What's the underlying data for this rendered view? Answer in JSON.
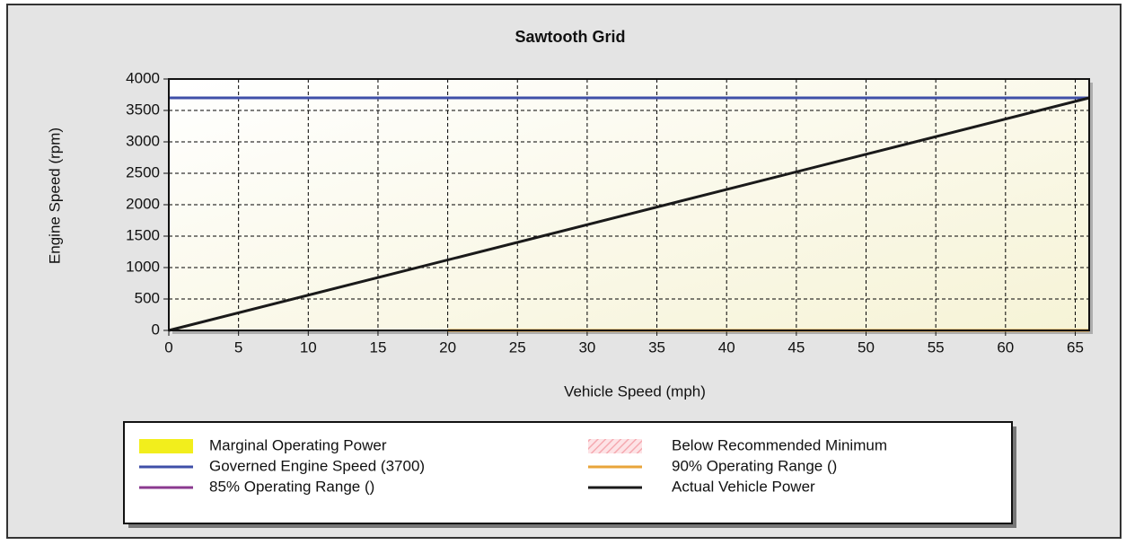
{
  "chart_data": {
    "type": "line",
    "title": "Sawtooth Grid",
    "x_label": "Vehicle Speed (mph)",
    "y_label": "Engine Speed (rpm)",
    "xlim": [
      0,
      66
    ],
    "xticks": [
      0,
      5,
      10,
      15,
      20,
      25,
      30,
      35,
      40,
      45,
      50,
      55,
      60,
      65
    ],
    "ylim": [
      0,
      4000
    ],
    "yticks": [
      0,
      500,
      1000,
      1500,
      2000,
      2500,
      3000,
      3500,
      4000
    ],
    "grid": true,
    "legend": "bottom",
    "series": [
      {
        "name": "Marginal Operating Power",
        "color": "#f2ee1c",
        "swatch": "box"
      },
      {
        "name": "Below Recommended Minimum",
        "color": "#f5a9b0",
        "swatch": "hatch"
      },
      {
        "name": "Governed Engine Speed (3700)",
        "color": "#3f4fa8",
        "swatch": "line",
        "x": [
          0,
          66
        ],
        "values": [
          3700,
          3700
        ]
      },
      {
        "name": "90% Operating Range ()",
        "color": "#e8a53a",
        "swatch": "line",
        "x": [
          20,
          66
        ],
        "values": [
          0,
          0
        ]
      },
      {
        "name": "85% Operating Range ()",
        "color": "#8b3a8f",
        "swatch": "line"
      },
      {
        "name": "Actual Vehicle Power",
        "color": "#1a1a1a",
        "swatch": "line",
        "x": [
          0,
          66
        ],
        "values": [
          0,
          3700
        ]
      }
    ]
  }
}
